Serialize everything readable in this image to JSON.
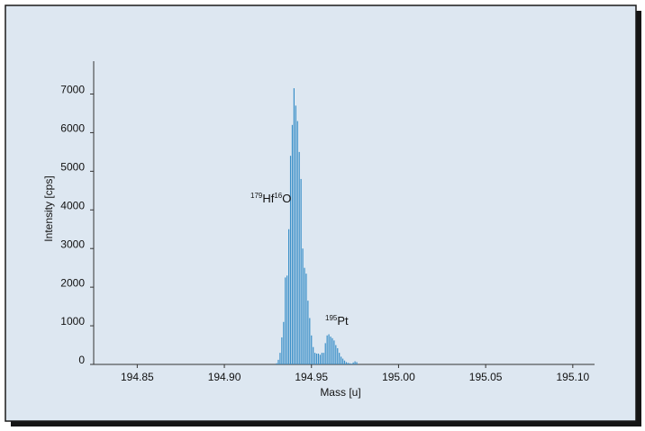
{
  "chart_data": {
    "type": "bar",
    "x_label": "Mass [u]",
    "y_label": "Intensity [cps]",
    "x": [
      194.93,
      194.931,
      194.932,
      194.933,
      194.934,
      194.935,
      194.936,
      194.937,
      194.938,
      194.939,
      194.94,
      194.941,
      194.942,
      194.943,
      194.944,
      194.945,
      194.946,
      194.947,
      194.948,
      194.949,
      194.95,
      194.951,
      194.952,
      194.953,
      194.954,
      194.955,
      194.956,
      194.957,
      194.958,
      194.959,
      194.96,
      194.961,
      194.962,
      194.963,
      194.964,
      194.965,
      194.966,
      194.967,
      194.968,
      194.969,
      194.97,
      194.971,
      194.972,
      194.973,
      194.974,
      194.975,
      194.976
    ],
    "values": [
      30,
      120,
      300,
      700,
      1100,
      2250,
      2300,
      3500,
      5400,
      6200,
      7150,
      6700,
      6300,
      5500,
      4800,
      3000,
      2500,
      2350,
      1650,
      1200,
      750,
      450,
      300,
      280,
      280,
      250,
      300,
      300,
      550,
      750,
      780,
      720,
      680,
      620,
      500,
      420,
      300,
      200,
      150,
      100,
      60,
      40,
      30,
      20,
      50,
      80,
      60
    ],
    "color": "#3a8fc8",
    "xlim": [
      194.825,
      195.1125
    ],
    "xticks": [
      194.85,
      {
        "value": 194.9,
        "label": "194.90"
      },
      194.95,
      {
        "value": 195,
        "label": "195.00"
      },
      195.05,
      {
        "value": 195.1,
        "label": "195.10"
      }
    ],
    "ylim": [
      0,
      7850
    ],
    "yticks": [
      0,
      1000,
      2000,
      3000,
      4000,
      5000,
      6000,
      7000
    ],
    "annotations": [
      [
        {
          "text": "179",
          "sup": true
        },
        {
          "text": "Hf",
          "sup": false
        },
        {
          "text": "16",
          "sup": true
        },
        {
          "text": "O",
          "sup": false
        }
      ],
      [
        {
          "text": "195",
          "sup": true
        },
        {
          "text": "Pt",
          "sup": false
        }
      ]
    ]
  }
}
